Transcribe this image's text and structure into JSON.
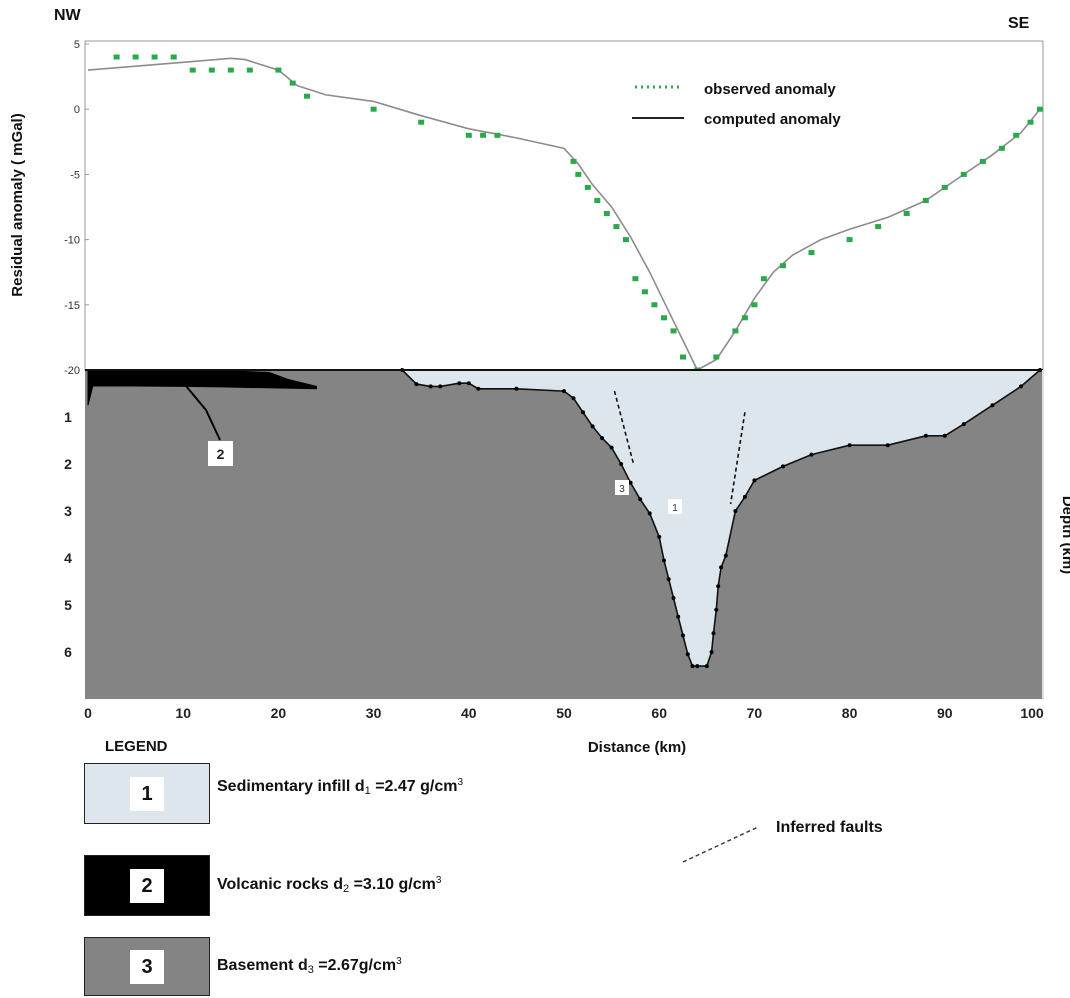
{
  "corners": {
    "left": "NW",
    "right": "SE"
  },
  "chart_data": [
    {
      "type": "line",
      "title": "",
      "xlabel": "",
      "ylabel": "Residual anomaly ( mGal)",
      "xlim": [
        0,
        100
      ],
      "ylim": [
        -20,
        5
      ],
      "yticks": [
        5,
        0,
        -5,
        -10,
        -15,
        -20
      ],
      "ytick_labels": [
        "5",
        "0",
        "-5",
        "-10",
        "-15",
        "-20"
      ],
      "legend_position": "top-right",
      "series": [
        {
          "name": "observed anomaly",
          "style": "dotted green markers",
          "color": "#2aa84a",
          "x": [
            3,
            5,
            7,
            9,
            11,
            13,
            15,
            17,
            20,
            21.5,
            23,
            30,
            35,
            40,
            41.5,
            43,
            51,
            51.5,
            52.5,
            53.5,
            54.5,
            55.5,
            56.5,
            57.5,
            58.5,
            59.5,
            60.5,
            61.5,
            62.5,
            64,
            66,
            68,
            69,
            70,
            71,
            73,
            76,
            80,
            83,
            86,
            88,
            90,
            92,
            94,
            96,
            97.5,
            99,
            100
          ],
          "y": [
            4,
            4,
            4,
            4,
            3,
            3,
            3,
            3,
            3,
            2,
            1,
            0,
            -1,
            -2,
            -2,
            -2,
            -4,
            -5,
            -6,
            -7,
            -8,
            -9,
            -10,
            -13,
            -14,
            -15,
            -16,
            -17,
            -19,
            -20,
            -19,
            -17,
            -16,
            -15,
            -13,
            -12,
            -11,
            -10,
            -9,
            -8,
            -7,
            -6,
            -5,
            -4,
            -3,
            -2,
            -1,
            0
          ]
        },
        {
          "name": "computed anomaly",
          "style": "solid line",
          "color": "#808080",
          "x": [
            0,
            5,
            10,
            15,
            16.5,
            20,
            22,
            25,
            30,
            35,
            40,
            45,
            50,
            51.5,
            53,
            55,
            57,
            59,
            61,
            63,
            64,
            66,
            68,
            70,
            72,
            74,
            77,
            80,
            84,
            88,
            92,
            95,
            98,
            100
          ],
          "y": [
            3,
            3.3,
            3.6,
            3.9,
            3.8,
            3,
            1.8,
            1.1,
            0.6,
            -0.5,
            -1.5,
            -2.2,
            -3,
            -4.2,
            -5.8,
            -7.5,
            -9.8,
            -12.5,
            -15.5,
            -18.5,
            -20,
            -19.2,
            -17,
            -14.5,
            -12.5,
            -11.2,
            -10,
            -9.2,
            -8.3,
            -7,
            -5,
            -3.5,
            -1.8,
            0
          ]
        }
      ]
    },
    {
      "type": "area",
      "title": "",
      "xlabel": "Distance (km)",
      "ylabel": "Depth (km)",
      "xlim": [
        0,
        100
      ],
      "ylim": [
        7,
        0
      ],
      "xticks": [
        0,
        10,
        20,
        30,
        40,
        50,
        60,
        70,
        80,
        90,
        100
      ],
      "yticks": [
        1,
        2,
        3,
        4,
        5,
        6
      ],
      "series": [
        {
          "name": "Sedimentary infill base (body 1)",
          "color": "#dde6ec",
          "x": [
            33,
            34.5,
            36,
            37,
            39,
            40,
            41,
            45,
            50,
            51,
            52,
            53,
            54,
            55,
            56,
            57,
            58,
            59,
            60,
            60.5,
            61,
            61.5,
            62,
            62.5,
            63,
            63.5,
            64,
            65,
            65.5,
            65.7,
            66,
            66.2,
            66.5,
            67,
            68,
            69,
            70,
            73,
            76,
            80,
            84,
            88,
            90,
            92,
            95,
            98,
            100
          ],
          "y": [
            0,
            0.3,
            0.35,
            0.35,
            0.28,
            0.28,
            0.4,
            0.4,
            0.45,
            0.6,
            0.9,
            1.2,
            1.45,
            1.65,
            2,
            2.4,
            2.75,
            3.05,
            3.55,
            4.05,
            4.45,
            4.85,
            5.25,
            5.65,
            6.05,
            6.3,
            6.3,
            6.3,
            6,
            5.6,
            5.1,
            4.6,
            4.2,
            3.95,
            3,
            2.7,
            2.35,
            2.05,
            1.8,
            1.6,
            1.6,
            1.4,
            1.4,
            1.15,
            0.75,
            0.35,
            0
          ]
        },
        {
          "name": "Volcanic rocks (body 2)",
          "color": "#000000",
          "x": [
            0,
            12,
            19,
            21,
            24,
            24,
            14,
            10,
            5,
            0.5,
            0
          ],
          "y": [
            0,
            0,
            0.05,
            0.2,
            0.35,
            0.4,
            0.36,
            0.35,
            0.34,
            0.34,
            0.75
          ]
        }
      ],
      "inferred_faults": [
        {
          "x": [
            55.3,
            57.3
          ],
          "y": [
            0.45,
            2
          ]
        },
        {
          "x": [
            69,
            67.5
          ],
          "y": [
            0.9,
            2.85
          ]
        }
      ],
      "body_labels": [
        "1",
        "2",
        "3"
      ]
    }
  ],
  "legend": {
    "title": "LEGEND",
    "items": [
      {
        "num": "1",
        "color": "#dde6ec",
        "name": "Sedimentary infill",
        "symbol": "d",
        "subscript": "1",
        "value": "=2.47 g/cm",
        "superscript": "3"
      },
      {
        "num": "2",
        "color": "#000000",
        "name": "Volcanic rocks",
        "symbol": "d",
        "subscript": "2",
        "value": "=3.10 g/cm",
        "superscript": "3"
      },
      {
        "num": "3",
        "color": "#848484",
        "name": "Basement",
        "symbol": "d",
        "subscript": "3",
        "value": "=2.67g/cm",
        "superscript": "3"
      }
    ],
    "faults_label": "Inferred faults"
  }
}
